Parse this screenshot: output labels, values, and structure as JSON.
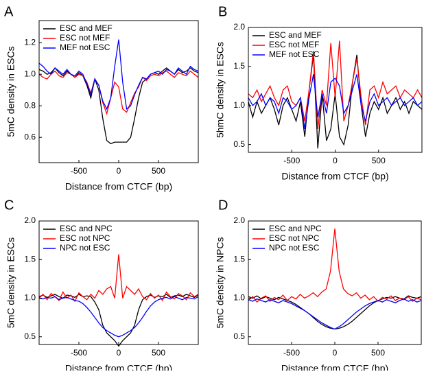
{
  "chart_data": [
    {
      "type": "line",
      "label": "A",
      "xlabel": "Distance from CTCF (bp)",
      "ylabel": "5mC density in ESCs",
      "xlim": [
        -1000,
        1000
      ],
      "xticks": [
        -500,
        0,
        500
      ],
      "ylim": [
        0.44,
        1.34
      ],
      "yticks": [
        0.6,
        0.8,
        {
          "value": 1,
          "label": "1.0"
        },
        1.2
      ],
      "x": [
        -1000,
        -950,
        -900,
        -850,
        -800,
        -750,
        -700,
        -650,
        -600,
        -550,
        -500,
        -450,
        -400,
        -350,
        -300,
        -250,
        -200,
        -150,
        -100,
        -50,
        0,
        50,
        100,
        150,
        200,
        250,
        300,
        350,
        400,
        450,
        500,
        550,
        600,
        650,
        700,
        750,
        800,
        850,
        900,
        950,
        1000
      ],
      "series": [
        {
          "name": "ESC and MEF",
          "color": "#000000",
          "values": [
            1.03,
            1.02,
            1.0,
            1.01,
            1.04,
            1.01,
            0.99,
            1.02,
            1.0,
            0.98,
            1.01,
            0.99,
            0.93,
            0.85,
            0.97,
            0.9,
            0.72,
            0.58,
            0.56,
            0.57,
            0.57,
            0.57,
            0.57,
            0.6,
            0.72,
            0.85,
            0.95,
            0.97,
            1.0,
            1.01,
            1.0,
            1.02,
            1.04,
            1.02,
            1.0,
            1.03,
            1.01,
            1.02,
            1.04,
            1.02,
            1.01
          ]
        },
        {
          "name": "ESC not MEF",
          "color": "#ff0000",
          "values": [
            1.0,
            0.98,
            0.97,
            1.0,
            1.02,
            0.99,
            0.98,
            1.01,
            1.0,
            0.98,
            1.0,
            0.99,
            0.95,
            0.88,
            0.97,
            0.93,
            0.82,
            0.75,
            0.85,
            0.95,
            0.92,
            0.78,
            0.76,
            0.82,
            0.88,
            0.92,
            0.98,
            0.96,
            0.99,
            1.0,
            0.99,
            1.01,
            1.02,
            1.0,
            0.98,
            1.01,
            1.0,
            0.99,
            1.02,
            1.0,
            0.98
          ]
        },
        {
          "name": "MEF not ESC",
          "color": "#0000ff",
          "values": [
            1.07,
            1.05,
            1.02,
            1.0,
            1.04,
            1.02,
            1.0,
            1.03,
            1.0,
            0.99,
            1.02,
            1.0,
            0.94,
            0.87,
            0.97,
            0.93,
            0.83,
            0.78,
            0.85,
            1.05,
            1.22,
            0.95,
            0.78,
            0.8,
            0.87,
            0.93,
            0.98,
            0.97,
            1.0,
            1.01,
            1.02,
            1.0,
            1.03,
            1.02,
            1.0,
            1.04,
            1.02,
            1.0,
            1.05,
            1.03,
            1.02
          ]
        }
      ]
    },
    {
      "type": "line",
      "label": "B",
      "xlabel": "Distance from CTCF (bp)",
      "ylabel": "5hmC density in ESCs",
      "xlim": [
        -1000,
        1000
      ],
      "xticks": [
        -500,
        0,
        500
      ],
      "ylim": [
        0.4,
        2.0
      ],
      "yticks": [
        0.5,
        {
          "value": 1,
          "label": "1.0"
        },
        1.5,
        {
          "value": 2,
          "label": "2.0"
        }
      ],
      "x": [
        -1000,
        -950,
        -900,
        -850,
        -800,
        -750,
        -700,
        -650,
        -600,
        -550,
        -500,
        -450,
        -400,
        -350,
        -300,
        -250,
        -200,
        -150,
        -100,
        -50,
        0,
        50,
        100,
        150,
        200,
        250,
        300,
        350,
        400,
        450,
        500,
        550,
        600,
        650,
        700,
        750,
        800,
        850,
        900,
        950,
        1000
      ],
      "series": [
        {
          "name": "ESC and MEF",
          "color": "#000000",
          "values": [
            1.05,
            0.85,
            1.05,
            0.9,
            1.0,
            1.1,
            0.95,
            0.75,
            1.0,
            1.1,
            0.95,
            0.8,
            1.05,
            0.6,
            1.2,
            1.65,
            0.45,
            1.15,
            0.55,
            0.7,
            1.15,
            0.6,
            0.5,
            0.75,
            1.3,
            1.65,
            1.0,
            0.6,
            0.9,
            1.05,
            0.95,
            1.1,
            0.9,
            1.0,
            1.1,
            0.95,
            1.05,
            0.9,
            1.05,
            1.0,
            0.95
          ]
        },
        {
          "name": "ESC not MEF",
          "color": "#ff0000",
          "values": [
            1.15,
            1.1,
            1.2,
            1.05,
            1.15,
            1.25,
            1.1,
            1.0,
            1.2,
            1.25,
            1.05,
            1.0,
            1.1,
            0.8,
            1.2,
            1.7,
            0.7,
            1.2,
            1.0,
            1.8,
            1.1,
            1.83,
            0.8,
            1.0,
            1.3,
            1.6,
            1.1,
            0.75,
            1.2,
            1.25,
            1.1,
            1.3,
            1.15,
            1.2,
            1.25,
            1.1,
            1.2,
            1.15,
            1.1,
            1.2,
            1.1
          ]
        },
        {
          "name": "MEF not ESC",
          "color": "#0000ff",
          "values": [
            1.1,
            1.0,
            1.05,
            1.15,
            1.0,
            1.1,
            1.05,
            0.9,
            1.1,
            1.05,
            0.95,
            1.0,
            1.1,
            0.7,
            1.1,
            1.4,
            0.85,
            1.15,
            0.9,
            1.3,
            1.35,
            1.25,
            0.9,
            1.0,
            1.2,
            1.4,
            1.0,
            0.8,
            1.05,
            1.15,
            1.0,
            1.05,
            1.1,
            1.0,
            1.05,
            1.1,
            1.0,
            1.05,
            1.1,
            1.0,
            1.05
          ]
        }
      ]
    },
    {
      "type": "line",
      "label": "C",
      "xlabel": "Distance from CTCF (bp)",
      "ylabel": "5mC density in ESCs",
      "xlim": [
        -1000,
        1000
      ],
      "xticks": [
        -500,
        0,
        500
      ],
      "ylim": [
        0.4,
        2.0
      ],
      "yticks": [
        0.5,
        {
          "value": 1,
          "label": "1.0"
        },
        1.5,
        {
          "value": 2,
          "label": "2.0"
        }
      ],
      "x": [
        -1000,
        -950,
        -900,
        -850,
        -800,
        -750,
        -700,
        -650,
        -600,
        -550,
        -500,
        -450,
        -400,
        -350,
        -300,
        -250,
        -200,
        -150,
        -100,
        -50,
        0,
        50,
        100,
        150,
        200,
        250,
        300,
        350,
        400,
        450,
        500,
        550,
        600,
        650,
        700,
        750,
        800,
        850,
        900,
        950,
        1000
      ],
      "series": [
        {
          "name": "ESC and NPC",
          "color": "#000000",
          "values": [
            1.02,
            1.04,
            1.01,
            1.03,
            1.05,
            1.02,
            1.0,
            1.04,
            1.03,
            1.01,
            1.05,
            1.02,
            1.03,
            1.02,
            0.95,
            0.85,
            0.65,
            0.55,
            0.5,
            0.45,
            0.38,
            0.45,
            0.5,
            0.55,
            0.65,
            0.85,
            0.98,
            1.02,
            1.04,
            1.01,
            1.03,
            1.02,
            1.05,
            1.01,
            1.03,
            1.04,
            1.02,
            1.05,
            1.03,
            1.01,
            1.04
          ]
        },
        {
          "name": "ESC not NPC",
          "color": "#ff0000",
          "values": [
            1.0,
            1.05,
            0.98,
            1.06,
            1.02,
            0.97,
            1.08,
            1.0,
            1.04,
            0.96,
            1.07,
            1.02,
            0.98,
            1.05,
            1.0,
            1.1,
            1.05,
            1.12,
            1.15,
            1.0,
            1.57,
            1.0,
            1.15,
            1.1,
            1.05,
            1.12,
            1.02,
            0.98,
            1.06,
            1.0,
            1.04,
            0.97,
            1.08,
            1.02,
            0.99,
            1.06,
            1.03,
            0.98,
            1.07,
            1.02,
            1.05
          ]
        },
        {
          "name": "NPC not ESC",
          "color": "#0000ff",
          "values": [
            1.0,
            0.99,
            1.01,
            1.0,
            1.02,
            0.98,
            1.0,
            1.01,
            0.99,
            0.97,
            0.96,
            0.93,
            0.88,
            0.82,
            0.75,
            0.68,
            0.62,
            0.58,
            0.55,
            0.52,
            0.5,
            0.52,
            0.55,
            0.58,
            0.62,
            0.68,
            0.75,
            0.83,
            0.9,
            0.95,
            0.98,
            1.0,
            1.01,
            0.99,
            1.02,
            1.0,
            0.98,
            1.01,
            1.0,
            0.99,
            1.02
          ]
        }
      ]
    },
    {
      "type": "line",
      "label": "D",
      "xlabel": "Distance from CTCF (bp)",
      "ylabel": "5mC density in NPCs",
      "xlim": [
        -1000,
        1000
      ],
      "xticks": [
        -500,
        0,
        500
      ],
      "ylim": [
        0.4,
        2.0
      ],
      "yticks": [
        0.5,
        {
          "value": 1,
          "label": "1.0"
        },
        1.5,
        {
          "value": 2,
          "label": "2.0"
        }
      ],
      "x": [
        -1000,
        -950,
        -900,
        -850,
        -800,
        -750,
        -700,
        -650,
        -600,
        -550,
        -500,
        -450,
        -400,
        -350,
        -300,
        -250,
        -200,
        -150,
        -100,
        -50,
        0,
        50,
        100,
        150,
        200,
        250,
        300,
        350,
        400,
        450,
        500,
        550,
        600,
        650,
        700,
        750,
        800,
        850,
        900,
        950,
        1000
      ],
      "series": [
        {
          "name": "ESC and NPC",
          "color": "#000000",
          "values": [
            1.02,
            1.0,
            1.03,
            0.99,
            1.02,
            1.0,
            0.98,
            1.01,
            0.99,
            0.97,
            0.95,
            0.92,
            0.88,
            0.84,
            0.8,
            0.75,
            0.7,
            0.66,
            0.63,
            0.61,
            0.6,
            0.61,
            0.63,
            0.66,
            0.7,
            0.75,
            0.8,
            0.85,
            0.9,
            0.94,
            0.97,
            0.99,
            1.01,
            1.0,
            1.02,
            1.0,
            0.99,
            1.03,
            1.01,
            1.0,
            1.02
          ]
        },
        {
          "name": "ESC not NPC",
          "color": "#ff0000",
          "values": [
            0.97,
            1.02,
            0.95,
            1.0,
            1.03,
            0.96,
            1.01,
            0.98,
            1.04,
            0.97,
            1.02,
            0.99,
            1.05,
            1.0,
            1.03,
            1.07,
            1.02,
            1.08,
            1.12,
            1.35,
            1.9,
            1.35,
            1.12,
            1.06,
            1.03,
            1.07,
            1.0,
            1.04,
            0.98,
            1.02,
            0.96,
            1.01,
            0.99,
            1.03,
            0.97,
            1.0,
            0.98,
            1.02,
            0.96,
            1.0,
            0.98
          ]
        },
        {
          "name": "NPC not ESC",
          "color": "#0000ff",
          "values": [
            0.98,
            0.96,
            0.99,
            0.97,
            0.95,
            0.98,
            0.96,
            0.94,
            0.97,
            0.95,
            0.93,
            0.9,
            0.87,
            0.84,
            0.8,
            0.76,
            0.72,
            0.68,
            0.65,
            0.62,
            0.6,
            0.63,
            0.67,
            0.72,
            0.77,
            0.82,
            0.86,
            0.9,
            0.93,
            0.95,
            0.97,
            0.95,
            0.98,
            0.96,
            0.94,
            0.97,
            0.99,
            0.96,
            0.98,
            0.95,
            0.97
          ]
        }
      ]
    }
  ]
}
